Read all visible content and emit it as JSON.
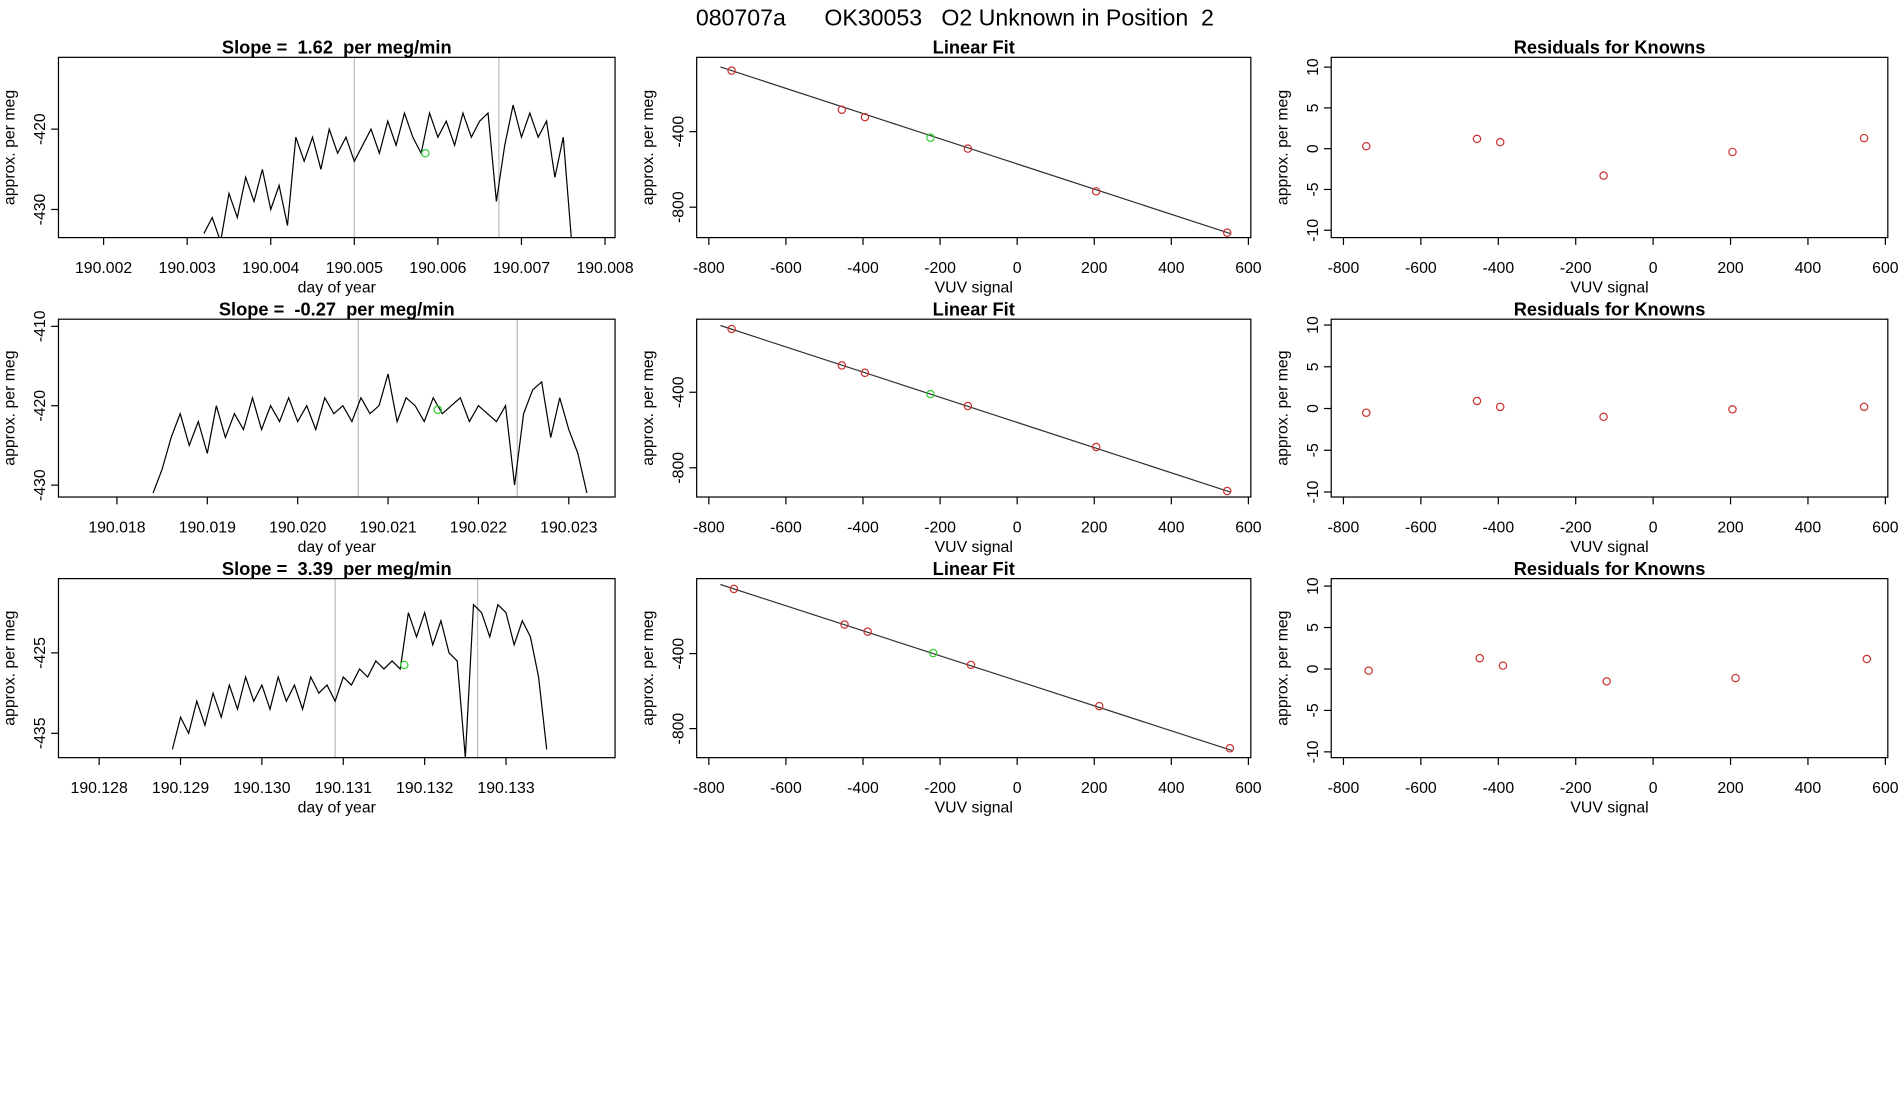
{
  "title": "080707a      OK30053   O2 Unknown in Position  2",
  "chart_data": [
    {
      "type": "line",
      "title": "Slope =  1.62  per meg/min",
      "xlabel": "day of year",
      "ylabel": "approx. per meg",
      "x": [
        190.0032,
        190.0033,
        190.0034,
        190.0035,
        190.0036,
        190.0037,
        190.0038,
        190.0039,
        190.004,
        190.0041,
        190.0042,
        190.0043,
        190.0044,
        190.0045,
        190.0046,
        190.0047,
        190.0048,
        190.0049,
        190.005,
        190.0051,
        190.0052,
        190.0053,
        190.0054,
        190.0055,
        190.0056,
        190.0057,
        190.0058,
        190.0059,
        190.006,
        190.0061,
        190.0062,
        190.0063,
        190.0064,
        190.0065,
        190.0066,
        190.0067,
        190.0068,
        190.0069,
        190.007,
        190.0071,
        190.0072,
        190.0073,
        190.0074,
        190.0075,
        190.0076
      ],
      "values": [
        -433,
        -431,
        -434,
        -428,
        -431,
        -426,
        -429,
        -425,
        -430,
        -427,
        -432,
        -421,
        -424,
        -421,
        -425,
        -420,
        -423,
        -421,
        -424,
        -422,
        -420,
        -423,
        -419,
        -422,
        -418,
        -421,
        -423,
        -418,
        -421,
        -419,
        -422,
        -418,
        -421,
        -419,
        -418,
        -429,
        -422,
        -417,
        -421,
        -418,
        -421,
        -419,
        -426,
        -421,
        -434
      ],
      "color": "#000000",
      "xlim": [
        190.00146,
        190.00812
      ],
      "ylim": [
        -433.5,
        -411.06
      ],
      "xticks": [
        190.002,
        190.003,
        190.004,
        190.005,
        190.006,
        190.007,
        190.008
      ],
      "yticks": [
        -430,
        -420
      ],
      "vlines": [
        190.005,
        190.00673
      ],
      "highlight": {
        "x": 190.00585,
        "y": -423,
        "color": "#33cc33"
      }
    },
    {
      "type": "scatter",
      "title": "Linear Fit",
      "xlabel": "VUV signal",
      "ylabel": "approx. per meg",
      "series": [
        {
          "color": "#cc3333",
          "x": [
            -741,
            -455,
            -395,
            -128,
            205,
            545
          ],
          "values": [
            -77,
            -284,
            -323,
            -490,
            -716,
            -935
          ]
        },
        {
          "color": "#33cc33",
          "x": [
            -225
          ],
          "values": [
            -432
          ]
        }
      ],
      "fit": {
        "slope": -0.667,
        "intercept": -571,
        "xrange": [
          -770,
          555
        ]
      },
      "xlim": [
        -831.6,
        606.3
      ],
      "ylim": [
        -961,
        -6.5
      ],
      "xticks": [
        -800,
        -600,
        -400,
        -200,
        0,
        200,
        400,
        600
      ],
      "yticks": [
        -400,
        -800
      ]
    },
    {
      "type": "scatter",
      "title": "Residuals for Knowns",
      "xlabel": "VUV signal",
      "ylabel": "approx. per meg",
      "series": [
        {
          "color": "#cc3333",
          "x": [
            -741,
            -455,
            -395,
            -128,
            205,
            545
          ],
          "values": [
            0.3,
            1.2,
            0.8,
            -3.3,
            -0.4,
            1.3
          ]
        }
      ],
      "xlim": [
        -831.6,
        606.3
      ],
      "ylim": [
        -10.9,
        11.2
      ],
      "xticks": [
        -800,
        -600,
        -400,
        -200,
        0,
        200,
        400,
        600
      ],
      "yticks": [
        -10,
        -5,
        0,
        5,
        10
      ]
    },
    {
      "type": "line",
      "title": "Slope =  -0.27  per meg/min",
      "xlabel": "day of year",
      "ylabel": "approx. per meg",
      "x": [
        190.0184,
        190.0185,
        190.0186,
        190.0187,
        190.0188,
        190.0189,
        190.019,
        190.0191,
        190.0192,
        190.0193,
        190.0194,
        190.0195,
        190.0196,
        190.0197,
        190.0198,
        190.0199,
        190.02,
        190.0201,
        190.0202,
        190.0203,
        190.0204,
        190.0205,
        190.0206,
        190.0207,
        190.0208,
        190.0209,
        190.021,
        190.0211,
        190.0212,
        190.0213,
        190.0214,
        190.0215,
        190.0216,
        190.0217,
        190.0218,
        190.0219,
        190.022,
        190.0221,
        190.0222,
        190.0223,
        190.0224,
        190.0225,
        190.0226,
        190.0227,
        190.0228,
        190.0229,
        190.023,
        190.0231,
        190.0232
      ],
      "values": [
        -431,
        -428,
        -424,
        -421,
        -425,
        -422,
        -426,
        -420,
        -424,
        -421,
        -423,
        -419,
        -423,
        -420,
        -422,
        -419,
        -422,
        -420,
        -423,
        -419,
        -421,
        -420,
        -422,
        -419,
        -421,
        -420,
        -416,
        -422,
        -419,
        -420,
        -422,
        -419,
        -421,
        -420,
        -419,
        -422,
        -420,
        -421,
        -422,
        -420,
        -430,
        -421,
        -418,
        -417,
        -424,
        -419,
        -423,
        -426,
        -431
      ],
      "color": "#000000",
      "xlim": [
        190.017353,
        190.023512
      ],
      "ylim": [
        -431.5,
        -409.1
      ],
      "xticks": [
        {
          "value": 190.018,
          "label": "190.018"
        },
        {
          "value": 190.019,
          "label": "190.019"
        },
        {
          "value": 190.02,
          "label": "190.020"
        },
        {
          "value": 190.021,
          "label": "190.021"
        },
        {
          "value": 190.022,
          "label": "190.022"
        },
        {
          "value": 190.023,
          "label": "190.023"
        }
      ],
      "yticks": [
        -430,
        -420,
        -410
      ],
      "vlines": [
        190.02067,
        190.02243
      ],
      "highlight": {
        "x": 190.02155,
        "y": -420.5,
        "color": "#33cc33"
      }
    },
    {
      "type": "scatter",
      "title": "Linear Fit",
      "xlabel": "VUV signal",
      "ylabel": "approx. per meg",
      "series": [
        {
          "color": "#cc3333",
          "x": [
            -741,
            -455,
            -395,
            -128,
            205,
            545
          ],
          "values": [
            -65,
            -258,
            -297,
            -473,
            -690,
            -923
          ]
        },
        {
          "color": "#33cc33",
          "x": [
            -225
          ],
          "values": [
            -410
          ]
        }
      ],
      "fit": {
        "slope": -0.667,
        "intercept": -560,
        "xrange": [
          -770,
          555
        ]
      },
      "xlim": [
        -831.6,
        606.3
      ],
      "ylim": [
        -955,
        -13
      ],
      "xticks": [
        -800,
        -600,
        -400,
        -200,
        0,
        200,
        400,
        600
      ],
      "yticks": [
        -400,
        -800
      ]
    },
    {
      "type": "scatter",
      "title": "Residuals for Knowns",
      "xlabel": "VUV signal",
      "ylabel": "approx. per meg",
      "series": [
        {
          "color": "#cc3333",
          "x": [
            -741,
            -455,
            -395,
            -128,
            205,
            545
          ],
          "values": [
            -0.5,
            0.9,
            0.2,
            -1.0,
            -0.1,
            0.2
          ]
        }
      ],
      "xlim": [
        -831.6,
        606.3
      ],
      "ylim": [
        -10.6,
        10.7
      ],
      "xticks": [
        -800,
        -600,
        -400,
        -200,
        0,
        200,
        400,
        600
      ],
      "yticks": [
        -10,
        -5,
        0,
        5,
        10
      ]
    },
    {
      "type": "line",
      "title": "Slope =  3.39  per meg/min",
      "xlabel": "day of year",
      "ylabel": "approx. per meg",
      "x": [
        190.1289,
        190.129,
        190.1291,
        190.1292,
        190.1293,
        190.1294,
        190.1295,
        190.1296,
        190.1297,
        190.1298,
        190.1299,
        190.13,
        190.1301,
        190.1302,
        190.1303,
        190.1304,
        190.1305,
        190.1306,
        190.1307,
        190.1308,
        190.1309,
        190.131,
        190.1311,
        190.1312,
        190.1313,
        190.1314,
        190.1315,
        190.1316,
        190.1317,
        190.1318,
        190.1319,
        190.132,
        190.1321,
        190.1322,
        190.1323,
        190.1324,
        190.1325,
        190.1326,
        190.1327,
        190.1328,
        190.1329,
        190.133,
        190.1331,
        190.1332,
        190.1333,
        190.1334,
        190.1335
      ],
      "values": [
        -437,
        -433,
        -435,
        -431,
        -434,
        -430,
        -433,
        -429,
        -432,
        -428,
        -431,
        -429,
        -432,
        -428,
        -431,
        -429,
        -432,
        -428,
        -430,
        -429,
        -431,
        -428,
        -429,
        -427,
        -428,
        -426,
        -427,
        -426,
        -427,
        -420,
        -423,
        -420,
        -424,
        -421,
        -425,
        -426,
        -438,
        -419,
        -420,
        -423,
        -419,
        -420,
        -424,
        -421,
        -423,
        -428,
        -437
      ],
      "color": "#000000",
      "xlim": [
        190.1275,
        190.13434
      ],
      "ylim": [
        -438.03,
        -415.76
      ],
      "xticks": [
        190.128,
        190.129,
        {
          "value": 190.13,
          "label": "190.130"
        },
        190.131,
        190.132,
        190.133
      ],
      "yticks": [
        -435,
        -425
      ],
      "vlines": [
        190.1309,
        190.13265
      ],
      "highlight": {
        "x": 190.13175,
        "y": -426.5,
        "color": "#33cc33"
      }
    },
    {
      "type": "scatter",
      "title": "Linear Fit",
      "xlabel": "VUV signal",
      "ylabel": "approx. per meg",
      "series": [
        {
          "color": "#cc3333",
          "x": [
            -735,
            -448,
            -388,
            -120,
            213,
            552
          ],
          "values": [
            -55,
            -245,
            -283,
            -460,
            -680,
            -905
          ]
        },
        {
          "color": "#33cc33",
          "x": [
            -218
          ],
          "values": [
            -397
          ]
        }
      ],
      "fit": {
        "slope": -0.667,
        "intercept": -545,
        "xrange": [
          -770,
          560
        ]
      },
      "xlim": [
        -831.6,
        606.3
      ],
      "ylim": [
        -955,
        0
      ],
      "xticks": [
        -800,
        -600,
        -400,
        -200,
        0,
        200,
        400,
        600
      ],
      "yticks": [
        -400,
        -800
      ]
    },
    {
      "type": "scatter",
      "title": "Residuals for Knowns",
      "xlabel": "VUV signal",
      "ylabel": "approx. per meg",
      "series": [
        {
          "color": "#cc3333",
          "x": [
            -735,
            -448,
            -388,
            -120,
            213,
            552
          ],
          "values": [
            -0.2,
            1.3,
            0.4,
            -1.5,
            -1.1,
            1.2
          ]
        }
      ],
      "xlim": [
        -831.6,
        606.3
      ],
      "ylim": [
        -10.7,
        10.9
      ],
      "xticks": [
        -800,
        -600,
        -400,
        -200,
        0,
        200,
        400,
        600
      ],
      "yticks": [
        -10,
        -5,
        0,
        5,
        10
      ]
    }
  ]
}
